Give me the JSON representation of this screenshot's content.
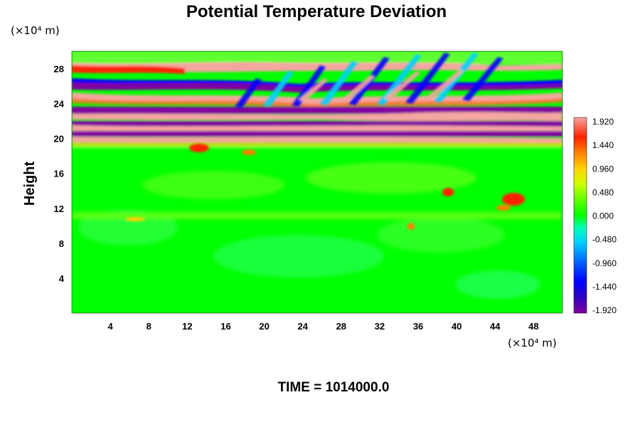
{
  "chart_data": {
    "type": "heatmap",
    "title": "Potential Temperature Deviation",
    "ylabel": "Height",
    "x_unit_label": "(×10⁴ m)",
    "y_unit_label": "(×10⁴ m)",
    "xlim": [
      0,
      51
    ],
    "ylim": [
      0,
      30
    ],
    "x_ticks": [
      "4",
      "8",
      "12",
      "16",
      "20",
      "24",
      "28",
      "32",
      "36",
      "40",
      "44",
      "48"
    ],
    "y_ticks": [
      "4",
      "8",
      "12",
      "16",
      "20",
      "24",
      "28"
    ],
    "colorbar": {
      "ticks": [
        "1.920",
        "1.440",
        "0.960",
        "0.480",
        "0.000",
        "-0.480",
        "-0.960",
        "-1.440",
        "-1.920"
      ],
      "range": [
        -1.92,
        1.92
      ]
    },
    "footer": "TIME = 1014000.0",
    "colors": {
      "background_field": "#00ff00",
      "positive_extreme": "#f4a6a0",
      "negative_extreme": "#8800aa"
    }
  }
}
